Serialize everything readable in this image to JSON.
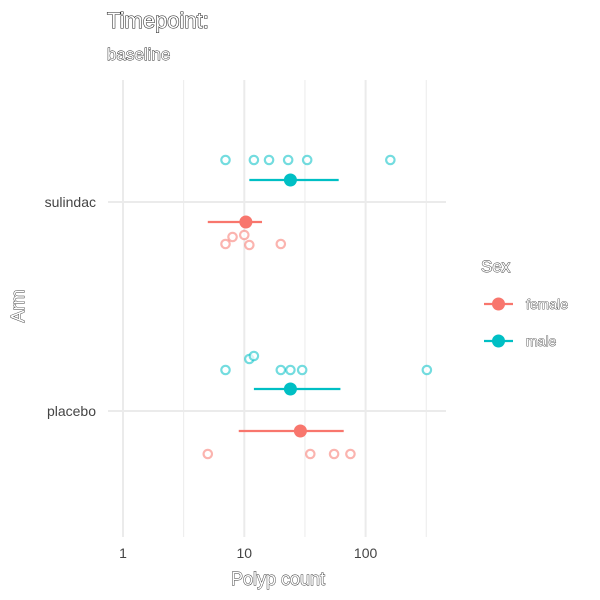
{
  "chart_data": {
    "type": "scatter",
    "title": "Timepoint:",
    "subtitle": "baseline",
    "xlabel": "Polyp count",
    "ylabel": "Arm",
    "x_scale": "log10",
    "xlim": [
      1,
      400
    ],
    "x_ticks": [
      {
        "value": 1,
        "label": "1"
      },
      {
        "value": 10,
        "label": "10"
      },
      {
        "value": 100,
        "label": "100"
      }
    ],
    "categories": [
      "sulindac",
      "placebo"
    ],
    "grid": true,
    "legend": {
      "title": "Sex",
      "placement": "right",
      "entries": [
        "female",
        "male"
      ]
    },
    "colors": {
      "female": "#F8766D",
      "male": "#00BFC4"
    },
    "series": [
      {
        "name": "female",
        "points": [
          {
            "arm": "sulindac",
            "values": [
              7,
              8,
              10,
              11,
              20
            ]
          },
          {
            "arm": "placebo",
            "values": [
              5,
              35,
              55,
              75
            ]
          }
        ],
        "summary": [
          {
            "arm": "sulindac",
            "mean": 10.3,
            "lower": 5,
            "upper": 14
          },
          {
            "arm": "placebo",
            "mean": 29,
            "lower": 9,
            "upper": 66
          }
        ]
      },
      {
        "name": "male",
        "points": [
          {
            "arm": "sulindac",
            "values": [
              7,
              12,
              16,
              23,
              33,
              160
            ]
          },
          {
            "arm": "placebo",
            "values": [
              7,
              11,
              12,
              20,
              24,
              30,
              320
            ]
          }
        ],
        "summary": [
          {
            "arm": "sulindac",
            "mean": 24,
            "lower": 11,
            "upper": 60
          },
          {
            "arm": "placebo",
            "mean": 24,
            "lower": 12,
            "upper": 62
          }
        ]
      }
    ]
  }
}
